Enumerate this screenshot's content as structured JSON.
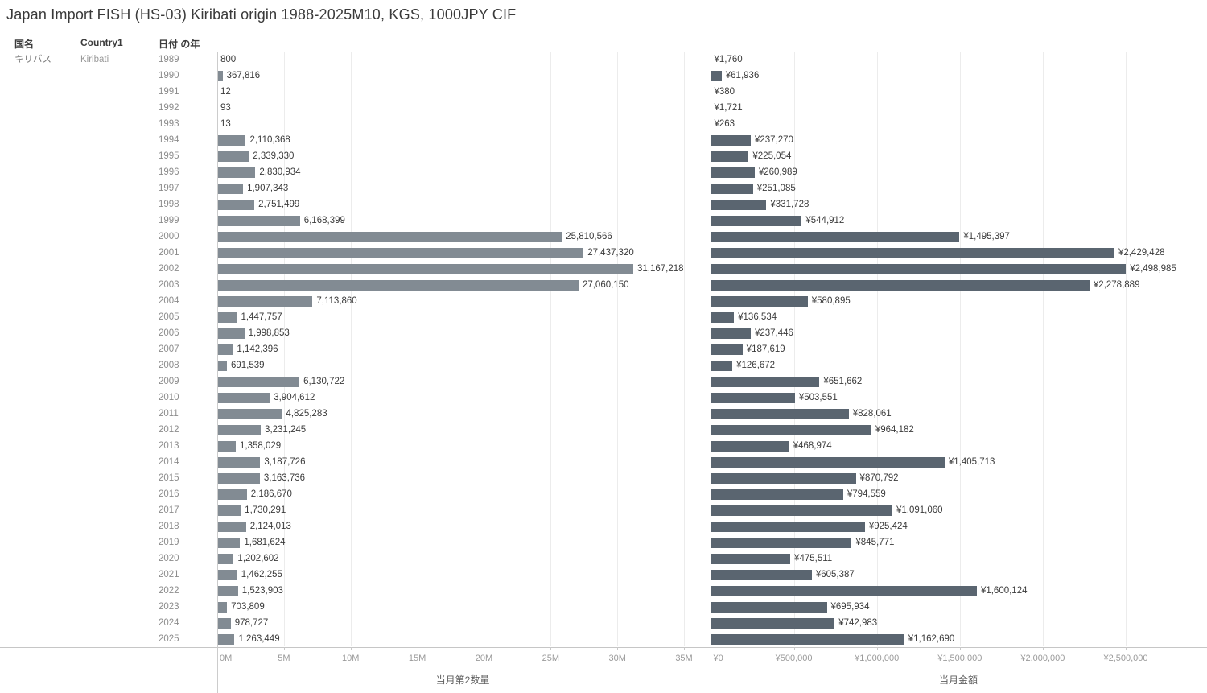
{
  "title": "Japan Import FISH (HS-03) Kiribati origin 1988-2025M10, KGS, 1000JPY CIF",
  "table": {
    "headers": {
      "country_jp": "国名",
      "country_en": "Country1",
      "year": "日付 の年"
    },
    "country_jp": "キリバス",
    "country_en": "Kiribati"
  },
  "colors": {
    "quantity_bar": "#828B93",
    "value_bar": "#5A6570",
    "axis_line": "#cccccc",
    "gridline": "#ececec",
    "label_text": "#3b3b3b",
    "muted_text": "#8c8c8c"
  },
  "chart_data": [
    {
      "type": "bar",
      "orientation": "horizontal",
      "axis_label": "当月第2数量",
      "unit": "KGS",
      "legend_position": "none",
      "grid": true,
      "xlim": [
        0,
        36870000
      ],
      "categories": [
        1989,
        1990,
        1991,
        1992,
        1993,
        1994,
        1995,
        1996,
        1997,
        1998,
        1999,
        2000,
        2001,
        2002,
        2003,
        2004,
        2005,
        2006,
        2007,
        2008,
        2009,
        2010,
        2011,
        2012,
        2013,
        2014,
        2015,
        2016,
        2017,
        2018,
        2019,
        2020,
        2021,
        2022,
        2023,
        2024,
        2025
      ],
      "values": [
        800,
        367816,
        12,
        93,
        13,
        2110368,
        2339330,
        2830934,
        1907343,
        2751499,
        6168399,
        25810566,
        27437320,
        31167218,
        27060150,
        7113860,
        1447757,
        1998853,
        1142396,
        691539,
        6130722,
        3904612,
        4825283,
        3231245,
        1358029,
        3187726,
        3163736,
        2186670,
        1730291,
        2124013,
        1681624,
        1202602,
        1462255,
        1523903,
        703809,
        978727,
        1263449
      ],
      "value_labels": [
        "800",
        "367,816",
        "12",
        "93",
        "13",
        "2,110,368",
        "2,339,330",
        "2,830,934",
        "1,907,343",
        "2,751,499",
        "6,168,399",
        "25,810,566",
        "27,437,320",
        "31,167,218",
        "27,060,150",
        "7,113,860",
        "1,447,757",
        "1,998,853",
        "1,142,396",
        "691,539",
        "6,130,722",
        "3,904,612",
        "4,825,283",
        "3,231,245",
        "1,358,029",
        "3,187,726",
        "3,163,736",
        "2,186,670",
        "1,730,291",
        "2,124,013",
        "1,681,624",
        "1,202,602",
        "1,462,255",
        "1,523,903",
        "703,809",
        "978,727",
        "1,263,449"
      ],
      "x_ticks": {
        "values": [
          0,
          5000000,
          10000000,
          15000000,
          20000000,
          25000000,
          30000000,
          35000000
        ],
        "labels": [
          "0M",
          "5M",
          "10M",
          "15M",
          "20M",
          "25M",
          "30M",
          "35M"
        ]
      }
    },
    {
      "type": "bar",
      "orientation": "horizontal",
      "axis_label": "当月金額",
      "unit": "1000JPY CIF",
      "legend_position": "none",
      "grid": true,
      "xlim": [
        0,
        2990000
      ],
      "categories": [
        1989,
        1990,
        1991,
        1992,
        1993,
        1994,
        1995,
        1996,
        1997,
        1998,
        1999,
        2000,
        2001,
        2002,
        2003,
        2004,
        2005,
        2006,
        2007,
        2008,
        2009,
        2010,
        2011,
        2012,
        2013,
        2014,
        2015,
        2016,
        2017,
        2018,
        2019,
        2020,
        2021,
        2022,
        2023,
        2024,
        2025
      ],
      "values": [
        1760,
        61936,
        380,
        1721,
        263,
        237270,
        225054,
        260989,
        251085,
        331728,
        544912,
        1495397,
        2429428,
        2498985,
        2278889,
        580895,
        136534,
        237446,
        187619,
        126672,
        651662,
        503551,
        828061,
        964182,
        468974,
        1405713,
        870792,
        794559,
        1091060,
        925424,
        845771,
        475511,
        605387,
        1600124,
        695934,
        742983,
        1162690
      ],
      "value_labels": [
        "¥1,760",
        "¥61,936",
        "¥380",
        "¥1,721",
        "¥263",
        "¥237,270",
        "¥225,054",
        "¥260,989",
        "¥251,085",
        "¥331,728",
        "¥544,912",
        "¥1,495,397",
        "¥2,429,428",
        "¥2,498,985",
        "¥2,278,889",
        "¥580,895",
        "¥136,534",
        "¥237,446",
        "¥187,619",
        "¥126,672",
        "¥651,662",
        "¥503,551",
        "¥828,061",
        "¥964,182",
        "¥468,974",
        "¥1,405,713",
        "¥870,792",
        "¥794,559",
        "¥1,091,060",
        "¥925,424",
        "¥845,771",
        "¥475,511",
        "¥605,387",
        "¥1,600,124",
        "¥695,934",
        "¥742,983",
        "¥1,162,690"
      ],
      "x_ticks": {
        "values": [
          0,
          500000,
          1000000,
          1500000,
          2000000,
          2500000
        ],
        "labels": [
          "¥0",
          "¥500,000",
          "¥1,000,000",
          "¥1,500,000",
          "¥2,000,000",
          "¥2,500,000"
        ]
      }
    }
  ]
}
